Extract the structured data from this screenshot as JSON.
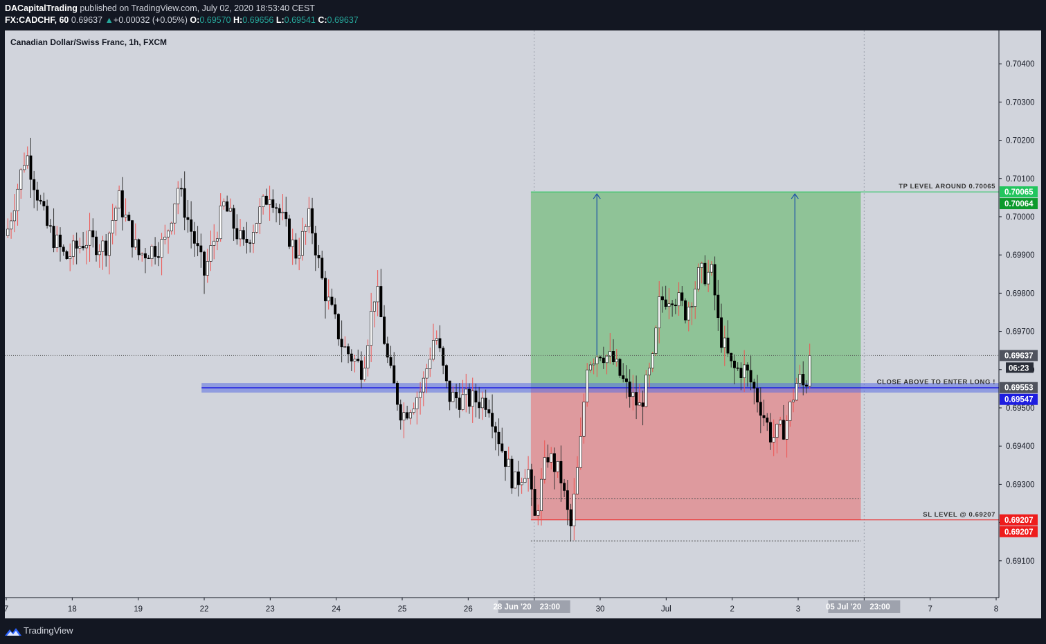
{
  "header": {
    "author": "DACapitalTrading",
    "published": " published on TradingView.com, July 02, 2020 18:53:40 CEST",
    "symbol": "FX:CADCHF, 60",
    "last": "0.69637",
    "change": "+0.00032 (+0.05%)",
    "o_label": "O:",
    "o": "0.69570",
    "h_label": "H:",
    "h": "0.69656",
    "l_label": "L:",
    "l": "0.69541",
    "c_label": "C:",
    "c": "0.69637"
  },
  "footer": {
    "brand": "TradingView"
  },
  "chart_data": {
    "type": "candlestick",
    "title": "Canadian Dollar/Swiss Franc, 1h, FXCM",
    "ylim": [
      0.6902,
      0.7046
    ],
    "yticks": [
      0.691,
      0.692,
      0.693,
      0.694,
      0.695,
      0.696,
      0.697,
      0.698,
      0.699,
      0.7,
      0.701,
      0.702,
      0.703,
      0.704
    ],
    "ytick_labels": [
      "0.69100",
      "0.69200",
      "0.69300",
      "0.69400",
      "0.69500",
      "0.69600",
      "0.69700",
      "0.69800",
      "0.69900",
      "0.70000",
      "0.70100",
      "0.70200",
      "0.70300",
      "0.70400"
    ],
    "xticks": [
      {
        "t": 0,
        "label": "7"
      },
      {
        "t": 1,
        "label": "18"
      },
      {
        "t": 2,
        "label": "19"
      },
      {
        "t": 3,
        "label": "22"
      },
      {
        "t": 4,
        "label": "23"
      },
      {
        "t": 5,
        "label": "24"
      },
      {
        "t": 6,
        "label": "25"
      },
      {
        "t": 7,
        "label": "26"
      },
      {
        "t": 8,
        "label": "29"
      },
      {
        "t": 9,
        "label": "30"
      },
      {
        "t": 10,
        "label": "Jul"
      },
      {
        "t": 11,
        "label": "2"
      },
      {
        "t": 12,
        "label": "3"
      },
      {
        "t": 13,
        "label": "6"
      },
      {
        "t": 14,
        "label": "7"
      },
      {
        "t": 15,
        "label": "8"
      }
    ],
    "x_range": [
      0,
      15
    ],
    "date_badges": [
      {
        "t": 8.0,
        "label": "28 Jun '20",
        "time": "23:00"
      },
      {
        "t": 13.0,
        "label": "05 Jul '20",
        "time": "23:00"
      }
    ],
    "key_prices": [
      {
        "path": [
          [
            0,
            0.6995
          ],
          [
            0.3,
            0.7017
          ],
          [
            0.6,
            0.6998
          ],
          [
            0.9,
            0.6989
          ],
          [
            1.2,
            0.6994
          ],
          [
            1.5,
            0.6992
          ],
          [
            1.7,
            0.7005
          ],
          [
            2.0,
            0.699
          ],
          [
            2.4,
            0.6993
          ],
          [
            2.6,
            0.7008
          ],
          [
            3.0,
            0.6985
          ],
          [
            3.3,
            0.7003
          ],
          [
            3.6,
            0.6992
          ],
          [
            4.0,
            0.7007
          ],
          [
            4.4,
            0.699
          ],
          [
            4.6,
            0.7
          ],
          [
            4.8,
            0.6982
          ],
          [
            5.1,
            0.6966
          ],
          [
            5.4,
            0.696
          ],
          [
            5.6,
            0.6982
          ],
          [
            5.8,
            0.696
          ],
          [
            6.0,
            0.6948
          ],
          [
            6.3,
            0.6955
          ],
          [
            6.5,
            0.697
          ],
          [
            6.7,
            0.6953
          ],
          [
            7.0,
            0.6952
          ],
          [
            7.3,
            0.6952
          ],
          [
            7.5,
            0.694
          ],
          [
            7.7,
            0.693
          ],
          [
            7.9,
            0.6935
          ],
          [
            8.0,
            0.692
          ],
          [
            8.2,
            0.6938
          ],
          [
            8.4,
            0.6932
          ],
          [
            8.55,
            0.6918
          ],
          [
            8.7,
            0.694
          ],
          [
            8.8,
            0.6962
          ],
          [
            9.0,
            0.6965
          ],
          [
            9.2,
            0.6962
          ],
          [
            9.4,
            0.6955
          ],
          [
            9.6,
            0.695
          ],
          [
            9.8,
            0.6962
          ],
          [
            9.9,
            0.6978
          ],
          [
            10.1,
            0.698
          ],
          [
            10.3,
            0.6975
          ],
          [
            10.5,
            0.6985
          ],
          [
            10.7,
            0.6985
          ],
          [
            10.8,
            0.697
          ],
          [
            11.0,
            0.696
          ],
          [
            11.2,
            0.696
          ],
          [
            11.4,
            0.6952
          ],
          [
            11.6,
            0.6942
          ],
          [
            11.8,
            0.6945
          ],
          [
            12.0,
            0.6958
          ],
          [
            12.1,
            0.6955
          ],
          [
            12.2,
            0.69637
          ]
        ]
      }
    ],
    "position": {
      "t_start": 7.95,
      "t_end": 12.95,
      "entry": 0.69553,
      "target": 0.70065,
      "stop": 0.69207,
      "profit_color": "#8fc397",
      "loss_color": "#de9a9e"
    },
    "zone": {
      "t_start": 2.96,
      "price_low": 0.6954,
      "price_high": 0.69565,
      "color": "#5b6ee1"
    },
    "arrows": [
      {
        "t": 8.95,
        "from": 0.69637,
        "to": 0.70065
      },
      {
        "t": 11.95,
        "from": 0.69553,
        "to": 0.70065
      }
    ],
    "dotted_levels": [
      {
        "price": 0.69263,
        "t_start": 7.95,
        "t_end": 12.95
      },
      {
        "price": 0.69152,
        "t_start": 7.95,
        "t_end": 12.95
      }
    ],
    "current_price": 0.69637,
    "annotations": [
      {
        "text": "TP LEVEL AROUND 0.70065",
        "price": 0.70065
      },
      {
        "text": "CLOSE ABOVE TO ENTER LONG !",
        "price": 0.69553
      },
      {
        "text": "SL LEVEL @ 0.69207",
        "price": 0.69207
      }
    ],
    "price_labels": [
      {
        "price": 0.70065,
        "text": "0.70065",
        "color": "#22c55e"
      },
      {
        "price": 0.70064,
        "text": "0.70064",
        "color": "#0c9a2c"
      },
      {
        "price": 0.69637,
        "text": "0.69637",
        "color": "#50535e"
      },
      {
        "price": 0.69553,
        "text": "0.69553",
        "color": "#50535e"
      },
      {
        "price": 0.69547,
        "text": "0.69547",
        "color": "#1d1de0"
      },
      {
        "price": 0.69207,
        "text": "0.69207",
        "color": "#ee1c1c"
      },
      {
        "price": 0.69207,
        "text": "0.69207",
        "color": "#ee1c1c"
      }
    ],
    "countdown": "06:23",
    "colors": {
      "bull": "#ffffff",
      "bear": "#000000",
      "wick_up": "#ef5350",
      "bg": "#d1d4dc"
    }
  }
}
